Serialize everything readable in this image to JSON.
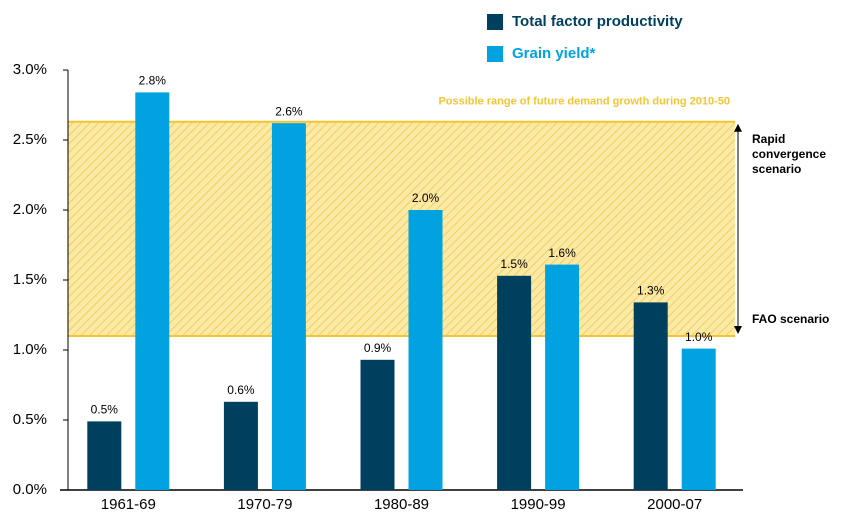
{
  "chart_data": {
    "type": "bar",
    "categories": [
      "1961-69",
      "1970-79",
      "1980-89",
      "1990-99",
      "2000-07"
    ],
    "series": [
      {
        "name": "Total factor productivity",
        "color": "#00405f",
        "values": [
          0.49,
          0.63,
          0.93,
          1.53,
          1.34
        ],
        "value_labels": [
          "0.5%",
          "0.6%",
          "0.9%",
          "1.5%",
          "1.3%"
        ]
      },
      {
        "name": "Grain yield*",
        "color": "#00a3df",
        "values": [
          2.84,
          2.62,
          2.0,
          1.61,
          1.01
        ],
        "value_labels": [
          "2.8%",
          "2.6%",
          "2.0%",
          "1.6%",
          "1.0%"
        ]
      }
    ],
    "ylim": [
      0,
      3
    ],
    "yticks": [
      {
        "value": 0,
        "label": "0.0%"
      },
      {
        "value": 0.5,
        "label": "0.5%"
      },
      {
        "value": 1,
        "label": "1.0%"
      },
      {
        "value": 1.5,
        "label": "1.5%"
      },
      {
        "value": 2,
        "label": "2.0%"
      },
      {
        "value": 2.5,
        "label": "2.5%"
      },
      {
        "value": 3,
        "label": "3.0%"
      }
    ],
    "band": {
      "range": [
        1.1,
        2.63
      ],
      "label": "Possible range of future demand growth during 2010-50",
      "color": "#f5c531",
      "upper_label": [
        "Rapid",
        "convergence",
        "scenario"
      ],
      "lower_label": "FAO scenario"
    },
    "legend": "top-right"
  }
}
